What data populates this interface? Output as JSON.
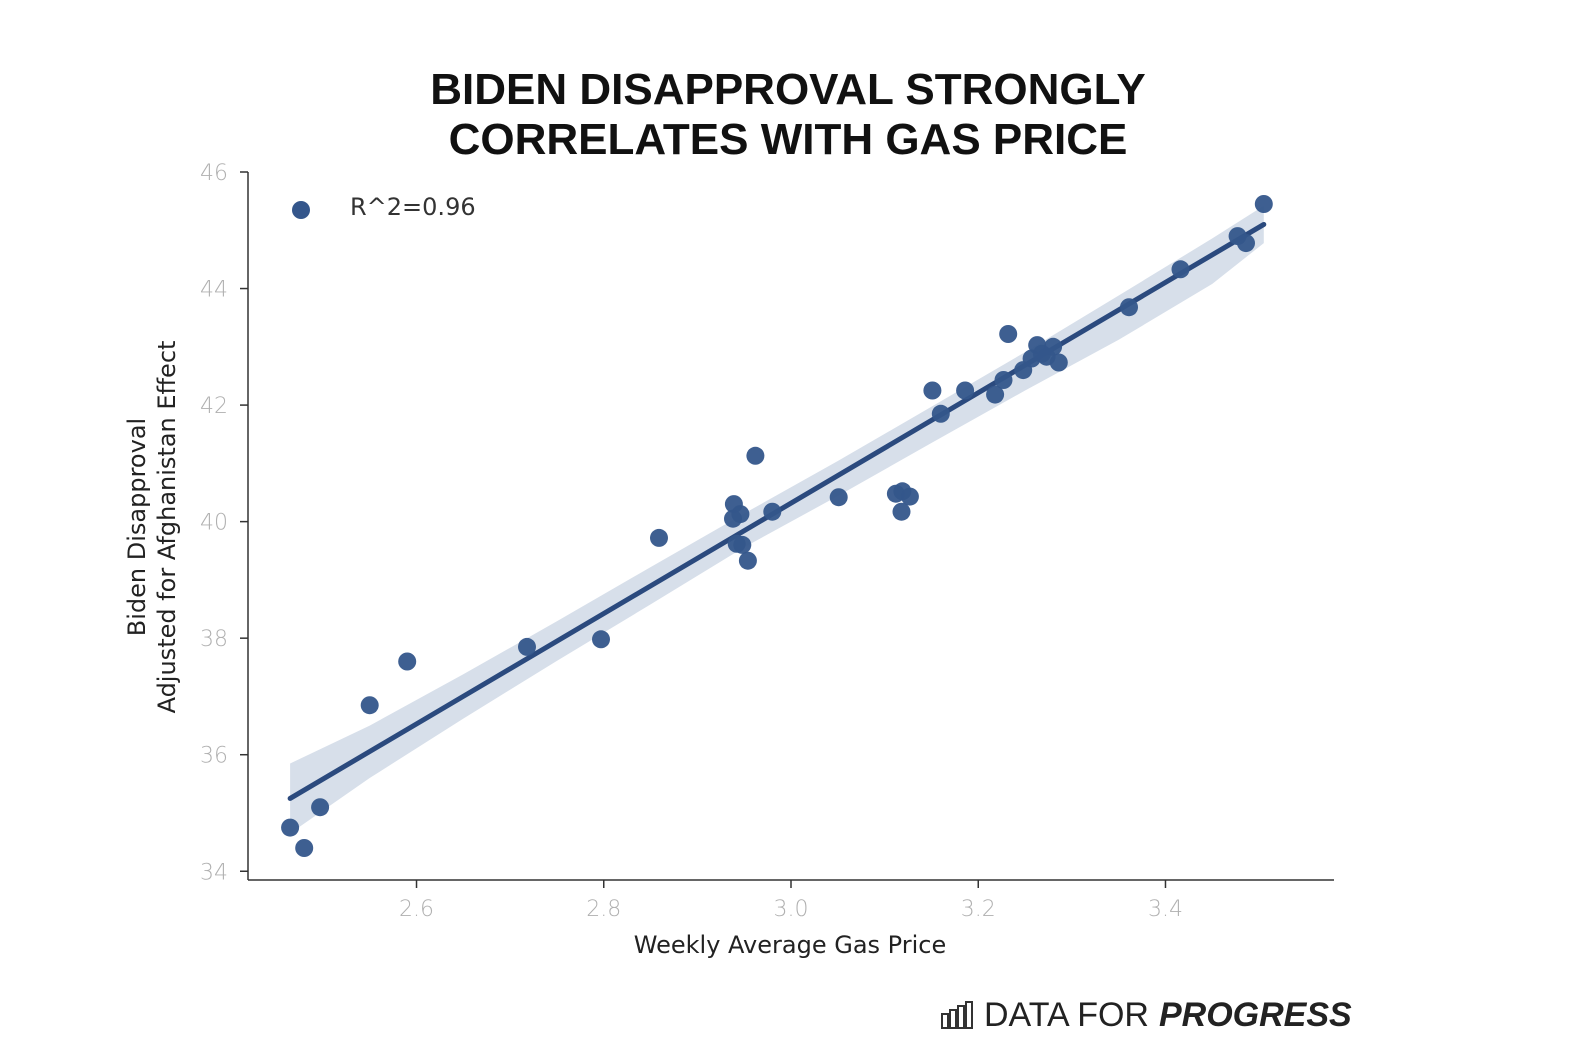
{
  "chart_data": {
    "type": "scatter",
    "title_lines": [
      "BIDEN DISAPPROVAL STRONGLY",
      "CORRELATES WITH GAS PRICE"
    ],
    "xlabel": "Weekly Average Gas Price",
    "ylabel_lines": [
      "Biden Disapproval",
      "Adjusted for Afghanistan Effect"
    ],
    "xlim": [
      2.42,
      3.58
    ],
    "ylim": [
      33.85,
      46.0
    ],
    "xticks": [
      2.6,
      2.8,
      3.0,
      3.2,
      3.4
    ],
    "xtick_labels": [
      "2.6",
      "2.8",
      "3.0",
      "3.2",
      "3.4"
    ],
    "yticks": [
      34,
      36,
      38,
      40,
      42,
      44,
      46
    ],
    "ytick_labels": [
      "34",
      "36",
      "38",
      "40",
      "42",
      "44",
      "46"
    ],
    "legend": {
      "label": "R^2=0.96",
      "placement": "top-left"
    },
    "series": [
      {
        "label": "R^2=0.96",
        "color": "#34568b",
        "points": [
          [
            2.465,
            34.75
          ],
          [
            2.48,
            34.4
          ],
          [
            2.497,
            35.1
          ],
          [
            2.55,
            36.85
          ],
          [
            2.59,
            37.6
          ],
          [
            2.718,
            37.85
          ],
          [
            2.797,
            37.98
          ],
          [
            2.859,
            39.72
          ],
          [
            2.939,
            40.3
          ],
          [
            2.938,
            40.05
          ],
          [
            2.946,
            40.13
          ],
          [
            2.942,
            39.62
          ],
          [
            2.948,
            39.6
          ],
          [
            2.954,
            39.33
          ],
          [
            2.962,
            41.13
          ],
          [
            2.98,
            40.17
          ],
          [
            3.051,
            40.42
          ],
          [
            3.112,
            40.48
          ],
          [
            3.119,
            40.52
          ],
          [
            3.127,
            40.43
          ],
          [
            3.118,
            40.17
          ],
          [
            3.151,
            42.25
          ],
          [
            3.16,
            41.85
          ],
          [
            3.186,
            42.25
          ],
          [
            3.218,
            42.18
          ],
          [
            3.227,
            42.43
          ],
          [
            3.232,
            43.22
          ],
          [
            3.248,
            42.6
          ],
          [
            3.257,
            42.8
          ],
          [
            3.263,
            43.03
          ],
          [
            3.268,
            42.88
          ],
          [
            3.273,
            42.83
          ],
          [
            3.28,
            43.0
          ],
          [
            3.286,
            42.73
          ],
          [
            3.361,
            43.68
          ],
          [
            3.416,
            44.33
          ],
          [
            3.477,
            44.9
          ],
          [
            3.486,
            44.78
          ],
          [
            3.505,
            45.45
          ]
        ]
      }
    ],
    "fit": {
      "x": [
        2.465,
        3.505
      ],
      "y": [
        35.25,
        45.1
      ],
      "line_color": "#2b4a7e",
      "band_color": "#d7dfea"
    },
    "band": {
      "x": [
        2.465,
        2.55,
        2.65,
        2.75,
        2.85,
        2.95,
        3.05,
        3.15,
        3.25,
        3.35,
        3.45,
        3.505
      ],
      "upper": [
        35.85,
        36.5,
        37.38,
        38.29,
        39.22,
        40.14,
        41.04,
        41.97,
        42.91,
        43.88,
        44.86,
        45.42
      ],
      "lower": [
        34.65,
        35.6,
        36.62,
        37.61,
        38.58,
        39.56,
        40.44,
        41.35,
        42.25,
        43.12,
        44.08,
        44.78
      ]
    }
  },
  "branding": {
    "text_normal": "DATA FOR",
    "text_bold": "PROGRESS",
    "icon": "bar-chart-icon"
  }
}
